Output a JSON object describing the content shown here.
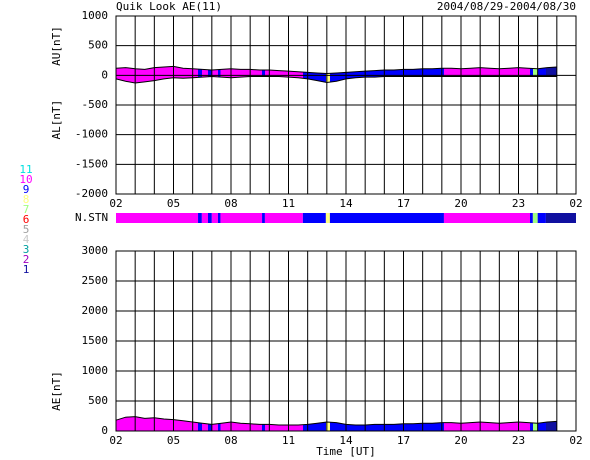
{
  "chart_data": {
    "type": "area",
    "title": "Quik Look AE(11)",
    "date_range": "2004/08/29-2004/08/30",
    "x_label": "Time [UT]",
    "xlim": [
      0,
      24
    ],
    "xticks": [
      {
        "value": 0,
        "label": "02"
      },
      {
        "value": 3,
        "label": "05"
      },
      {
        "value": 6,
        "label": "08"
      },
      {
        "value": 9,
        "label": "11"
      },
      {
        "value": 12,
        "label": "14"
      },
      {
        "value": 15,
        "label": "17"
      },
      {
        "value": 18,
        "label": "20"
      },
      {
        "value": 21,
        "label": "23"
      },
      {
        "value": 24,
        "label": "02"
      }
    ],
    "xgrid": [
      0,
      1,
      2,
      3,
      4,
      5,
      6,
      7,
      8,
      9,
      10,
      11,
      12,
      13,
      14,
      15,
      16,
      17,
      18,
      19,
      20,
      21,
      22,
      23,
      24
    ],
    "x": [
      0,
      0.5,
      1,
      1.5,
      2,
      2.5,
      3,
      3.5,
      4,
      4.5,
      5,
      5.5,
      6,
      6.5,
      7,
      7.5,
      8,
      8.5,
      9,
      9.5,
      10,
      10.5,
      11,
      11.5,
      12,
      12.5,
      13,
      13.5,
      14,
      14.5,
      15,
      15.5,
      16,
      16.5,
      17,
      17.5,
      18,
      18.5,
      19,
      19.5,
      20,
      20.5,
      21,
      21.5,
      22,
      22.5,
      23
    ],
    "panels": [
      {
        "ylabels": [
          "AU[nT]",
          "AL[nT]"
        ],
        "ylim": [
          -2000,
          1000
        ],
        "yticks": [
          -2000,
          -1500,
          -1000,
          -500,
          0,
          500,
          1000
        ],
        "series": [
          {
            "values": [
              120,
              130,
              110,
              100,
              130,
              140,
              150,
              120,
              110,
              100,
              90,
              100,
              110,
              100,
              100,
              90,
              90,
              80,
              70,
              60,
              50,
              40,
              30,
              40,
              50,
              60,
              70,
              80,
              90,
              90,
              100,
              100,
              110,
              110,
              120,
              120,
              110,
              120,
              130,
              120,
              110,
              120,
              130,
              120,
              110,
              130,
              140
            ]
          },
          {
            "values": [
              -60,
              -100,
              -130,
              -110,
              -90,
              -60,
              -40,
              -50,
              -40,
              -30,
              -20,
              -30,
              -40,
              -30,
              -20,
              -20,
              -20,
              -20,
              -30,
              -40,
              -60,
              -90,
              -120,
              -100,
              -60,
              -40,
              -30,
              -30,
              -20,
              -20,
              -20,
              -20,
              -20,
              -20,
              -20,
              -20,
              -20,
              -20,
              -20,
              -20,
              -20,
              -20,
              -20,
              -20,
              -20,
              -20,
              -20
            ]
          }
        ]
      },
      {
        "ylabels": [
          "AE[nT]"
        ],
        "ylim": [
          0,
          3000
        ],
        "yticks": [
          0,
          500,
          1000,
          1500,
          2000,
          2500,
          3000
        ],
        "series": [
          {
            "values": [
              180,
              230,
              240,
              210,
              220,
              200,
              190,
              170,
              150,
              130,
              110,
              130,
              150,
              130,
              120,
              110,
              110,
              100,
              100,
              100,
              110,
              130,
              150,
              140,
              110,
              100,
              100,
              110,
              110,
              110,
              120,
              120,
              130,
              130,
              140,
              140,
              130,
              140,
              150,
              140,
              130,
              140,
              150,
              140,
              130,
              150,
              160
            ]
          }
        ]
      }
    ],
    "n_stn": {
      "label": "N.STN",
      "x": [
        0,
        4.28,
        4.48,
        4.8,
        5.0,
        5.32,
        5.45,
        7.62,
        7.77,
        9.75,
        10.95,
        11.16,
        17.11,
        21.6,
        21.75,
        22.0,
        22.43
      ],
      "values": [
        10,
        9,
        10,
        9,
        10,
        9,
        10,
        9,
        10,
        9,
        8,
        9,
        10,
        9,
        7,
        9,
        1
      ]
    },
    "legend": {
      "values": [
        11,
        10,
        9,
        8,
        7,
        6,
        5,
        4,
        3,
        2,
        1
      ],
      "colors": [
        "#00e0e0",
        "#ff00ff",
        "#0000ff",
        "#ffff80",
        "#a0ff80",
        "#ff0000",
        "#a0a0a0",
        "#c8c8c8",
        "#00a0a0",
        "#a000c0",
        "#1010a0"
      ]
    }
  }
}
